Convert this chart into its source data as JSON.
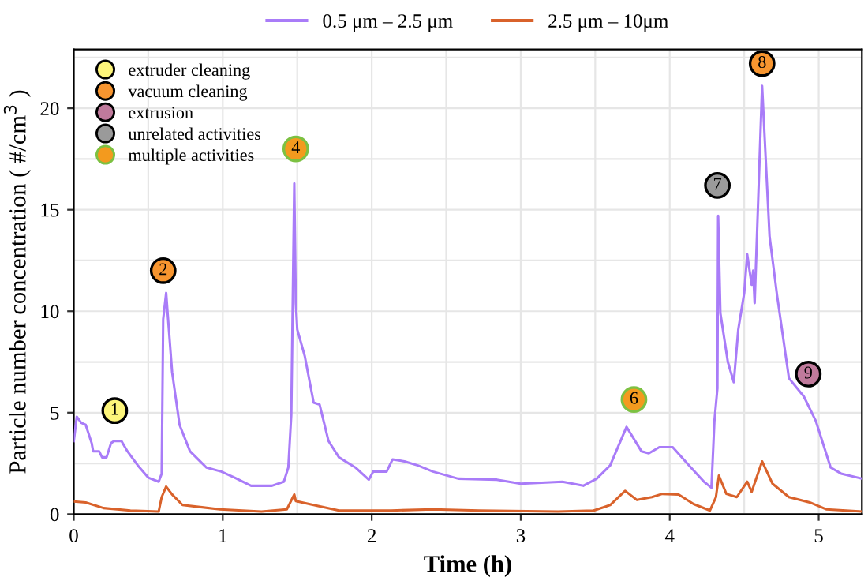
{
  "chart_data": {
    "type": "line",
    "xlabel": "Time (h)",
    "ylabel": "Particle number concentration ( #/cm$^{3}$ )",
    "xlim": [
      0,
      5.29
    ],
    "ylim": [
      0,
      22.9
    ],
    "xticks": [
      0,
      1,
      2,
      3,
      4,
      5
    ],
    "yticks": [
      0,
      5,
      10,
      15,
      20
    ],
    "grid": true,
    "legend": "top",
    "line_style": "solid",
    "annotations": [
      {
        "text": "1",
        "x": 0.275,
        "y": 5.1
      },
      {
        "text": "2",
        "x": 0.6,
        "y": 12.0
      },
      {
        "text": "4",
        "x": 1.49,
        "y": 18.0
      },
      {
        "text": "6",
        "x": 3.76,
        "y": 5.65
      },
      {
        "text": "7",
        "x": 4.32,
        "y": 16.2
      },
      {
        "text": "8",
        "x": 4.62,
        "y": 22.2
      },
      {
        "text": "9",
        "x": 4.93,
        "y": 6.9
      }
    ],
    "series": [
      {
        "name": "0.5 μm – 2.5 μm",
        "color": "#a97cf8",
        "x": [
          0,
          0.02,
          0.05,
          0.08,
          0.12,
          0.13,
          0.17,
          0.19,
          0.22,
          0.25,
          0.27,
          0.32,
          0.36,
          0.43,
          0.5,
          0.57,
          0.59,
          0.6,
          0.62,
          0.63,
          0.66,
          0.71,
          0.78,
          0.89,
          0.99,
          1.08,
          1.19,
          1.33,
          1.41,
          1.44,
          1.46,
          1.48,
          1.49,
          1.5,
          1.55,
          1.61,
          1.65,
          1.71,
          1.78,
          1.89,
          1.98,
          2.01,
          2.1,
          2.14,
          2.22,
          2.31,
          2.41,
          2.58,
          2.84,
          3.0,
          3.28,
          3.42,
          3.51,
          3.6,
          3.71,
          3.81,
          3.86,
          3.93,
          4.02,
          4.13,
          4.23,
          4.28,
          4.3,
          4.32,
          4.325,
          4.34,
          4.39,
          4.43,
          4.46,
          4.5,
          4.52,
          4.55,
          4.56,
          4.57,
          4.62,
          4.67,
          4.72,
          4.8,
          4.9,
          4.98,
          5.08,
          5.15,
          5.29
        ],
        "values": [
          3.6,
          4.8,
          4.5,
          4.4,
          3.5,
          3.1,
          3.1,
          2.8,
          2.8,
          3.5,
          3.6,
          3.6,
          3.1,
          2.4,
          1.8,
          1.6,
          2.0,
          9.6,
          10.9,
          9.9,
          7.0,
          4.4,
          3.1,
          2.3,
          2.1,
          1.8,
          1.4,
          1.4,
          1.6,
          2.3,
          4.9,
          16.3,
          10.4,
          9.1,
          7.8,
          5.5,
          5.4,
          3.6,
          2.8,
          2.3,
          1.7,
          2.1,
          2.1,
          2.7,
          2.6,
          2.4,
          2.1,
          1.75,
          1.7,
          1.5,
          1.6,
          1.4,
          1.75,
          2.4,
          4.3,
          3.1,
          3.0,
          3.3,
          3.3,
          2.4,
          1.6,
          1.3,
          4.6,
          6.2,
          14.7,
          9.9,
          7.5,
          6.5,
          9.1,
          10.9,
          12.8,
          11.3,
          12.0,
          10.4,
          21.1,
          13.7,
          10.8,
          6.7,
          5.8,
          4.6,
          2.3,
          2.0,
          1.75
        ]
      },
      {
        "name": "2.5 μm – 10μm",
        "color": "#d9622b",
        "x": [
          0,
          0.08,
          0.2,
          0.38,
          0.57,
          0.59,
          0.62,
          0.66,
          0.73,
          0.98,
          1.26,
          1.43,
          1.48,
          1.49,
          1.61,
          1.78,
          2.13,
          2.41,
          2.72,
          3.25,
          3.49,
          3.6,
          3.7,
          3.78,
          3.88,
          3.95,
          4.06,
          4.16,
          4.27,
          4.31,
          4.33,
          4.38,
          4.45,
          4.52,
          4.55,
          4.62,
          4.69,
          4.8,
          4.94,
          5.05,
          5.29
        ],
        "values": [
          0.63,
          0.58,
          0.3,
          0.18,
          0.13,
          0.84,
          1.36,
          0.97,
          0.45,
          0.24,
          0.13,
          0.24,
          0.97,
          0.65,
          0.45,
          0.18,
          0.18,
          0.24,
          0.18,
          0.13,
          0.18,
          0.45,
          1.15,
          0.7,
          0.84,
          1.0,
          0.97,
          0.5,
          0.18,
          0.84,
          1.9,
          1.0,
          0.84,
          1.6,
          1.1,
          2.6,
          1.5,
          0.84,
          0.58,
          0.24,
          0.13
        ]
      },
      {
        "type": "scatter",
        "marker": "circle",
        "name": "extruder cleaning",
        "color": "#fdf57a",
        "x": [
          0.275
        ],
        "values": [
          5.1
        ]
      },
      {
        "type": "scatter",
        "marker": "circle",
        "name": "vacuum cleaning",
        "color": "#f7952f",
        "x": [
          0.6,
          4.62
        ],
        "values": [
          12.0,
          22.2
        ]
      },
      {
        "type": "scatter",
        "marker": "circle",
        "name": "extrusion",
        "color": "#c07a9c",
        "x": [
          4.93
        ],
        "values": [
          6.9
        ]
      },
      {
        "type": "scatter",
        "marker": "circle",
        "name": "unrelated activities",
        "color": "#9a9a9a",
        "x": [
          4.32
        ],
        "values": [
          16.2
        ]
      },
      {
        "type": "scatter",
        "marker": "circle",
        "name": "multiple activities",
        "color": "#f39a1e",
        "x": [
          1.49,
          3.76
        ],
        "values": [
          18.0,
          5.65
        ]
      }
    ]
  }
}
